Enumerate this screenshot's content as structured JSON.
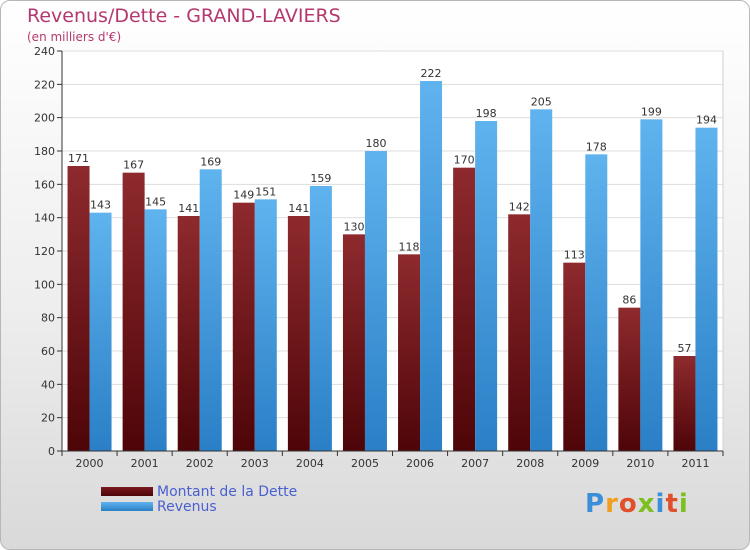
{
  "chart_data": {
    "type": "bar",
    "title": "Revenus/Dette - GRAND-LAVIERS",
    "subtitle": "(en milliers d'€)",
    "categories": [
      "2000",
      "2001",
      "2002",
      "2003",
      "2004",
      "2005",
      "2006",
      "2007",
      "2008",
      "2009",
      "2010",
      "2011"
    ],
    "series": [
      {
        "name": "Montant de la Dette",
        "color": "#7a1a1f",
        "values": [
          171,
          167,
          141,
          149,
          141,
          130,
          118,
          170,
          142,
          113,
          86,
          57
        ]
      },
      {
        "name": "Revenus",
        "color": "#3c9be0",
        "values": [
          143,
          145,
          169,
          151,
          159,
          180,
          222,
          198,
          205,
          178,
          199,
          194
        ]
      }
    ],
    "ylim": [
      0,
      240
    ],
    "yticks": [
      0,
      20,
      40,
      60,
      80,
      100,
      120,
      140,
      160,
      180,
      200,
      220,
      240
    ],
    "grid": true,
    "legend_position": "bottom-left"
  },
  "logo": {
    "letters": [
      "P",
      "r",
      "o",
      "x",
      "i",
      "t",
      "i"
    ],
    "colors": [
      "#3a8fd8",
      "#f0a020",
      "#e0502a",
      "#7cc020",
      "#3a8fd8",
      "#e0502a",
      "#7cc020"
    ]
  }
}
